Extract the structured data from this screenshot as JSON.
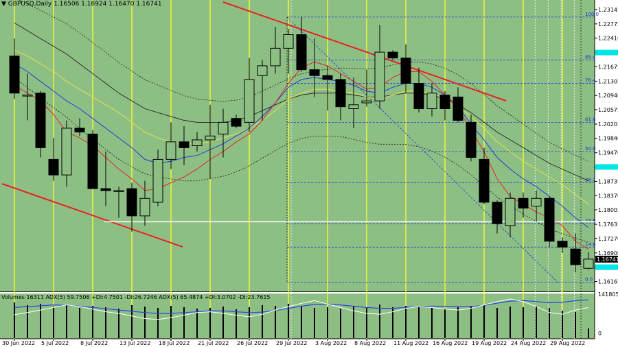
{
  "header": {
    "symbol_info": "GBPUSD,Daily  1.16506 1.16924 1.16470 1.16741"
  },
  "indicator_header": {
    "text": "Volumes 16311  ADX(5) 59.7506 +DI:4.7501 -DI:26.7246  ADX(5) 65.4874 +DI:3.0702 -DI:23.7615"
  },
  "colors": {
    "background": "#8dbf85",
    "bull_body": "#8dbf85",
    "bear_body": "#000000",
    "trendline": "#e8231f",
    "fib": "#1f3bd6",
    "ma_fast": "#e8231f",
    "ma_mid": "#1f3bd6",
    "ma_slow": "#e2e24a",
    "ma_long": "#222222",
    "vline": "#ffff2b",
    "price_tag": "#00e5e5",
    "adx_white": "#ffffff",
    "adx_blue": "#2848e0"
  },
  "chart_data": {
    "type": "candlestick",
    "symbol": "GBPUSD",
    "timeframe": "Daily",
    "price_axis": {
      "ylim": [
        1.16,
        1.233
      ],
      "ticks": [
        "1.23145",
        "1.22775",
        "1.22410",
        "1.22040",
        "1.21675",
        "1.21305",
        "1.20940",
        "1.20575",
        "1.20205",
        "1.19840",
        "1.19470",
        "1.19105",
        "1.18735",
        "1.18370",
        "1.18005",
        "1.17635",
        "1.17270",
        "1.16900",
        "1.16535",
        "1.16165"
      ],
      "current_price": "1.16741",
      "highlight_prices": [
        "1.22040",
        "1.19105",
        "1.16535"
      ]
    },
    "date_labels": [
      "30 Jun 2022",
      "5 Jul 2022",
      "8 Jul 2022",
      "13 Jul 2022",
      "18 Jul 2022",
      "21 Jul 2022",
      "26 Jul 2022",
      "29 Jul 2022",
      "3 Aug 2022",
      "8 Aug 2022",
      "11 Aug 2022",
      "16 Aug 2022",
      "19 Aug 2022",
      "24 Aug 2022",
      "29 Aug 2022"
    ],
    "candles": [
      {
        "o": 1.2195,
        "h": 1.224,
        "l": 1.2085,
        "c": 1.21
      },
      {
        "o": 1.2095,
        "h": 1.215,
        "l": 1.203,
        "c": 1.2095
      },
      {
        "o": 1.21,
        "h": 1.2105,
        "l": 1.1935,
        "c": 1.196
      },
      {
        "o": 1.193,
        "h": 1.1985,
        "l": 1.1875,
        "c": 1.189
      },
      {
        "o": 1.189,
        "h": 1.203,
        "l": 1.186,
        "c": 1.201
      },
      {
        "o": 1.201,
        "h": 1.2035,
        "l": 1.199,
        "c": 1.2
      },
      {
        "o": 1.1995,
        "h": 1.2005,
        "l": 1.186,
        "c": 1.1855
      },
      {
        "o": 1.1855,
        "h": 1.195,
        "l": 1.181,
        "c": 1.185
      },
      {
        "o": 1.185,
        "h": 1.186,
        "l": 1.178,
        "c": 1.185
      },
      {
        "o": 1.1855,
        "h": 1.187,
        "l": 1.1745,
        "c": 1.1785
      },
      {
        "o": 1.1785,
        "h": 1.1875,
        "l": 1.176,
        "c": 1.183
      },
      {
        "o": 1.182,
        "h": 1.1955,
        "l": 1.181,
        "c": 1.193
      },
      {
        "o": 1.193,
        "h": 1.2025,
        "l": 1.1905,
        "c": 1.1975
      },
      {
        "o": 1.1975,
        "h": 1.2015,
        "l": 1.1915,
        "c": 1.196
      },
      {
        "o": 1.1965,
        "h": 1.2,
        "l": 1.195,
        "c": 1.198
      },
      {
        "o": 1.198,
        "h": 1.207,
        "l": 1.188,
        "c": 1.199
      },
      {
        "o": 1.1995,
        "h": 1.206,
        "l": 1.1935,
        "c": 1.2025
      },
      {
        "o": 1.2035,
        "h": 1.2045,
        "l": 1.201,
        "c": 1.2015
      },
      {
        "o": 1.2025,
        "h": 1.219,
        "l": 1.2,
        "c": 1.2135
      },
      {
        "o": 1.2145,
        "h": 1.2185,
        "l": 1.203,
        "c": 1.217
      },
      {
        "o": 1.217,
        "h": 1.227,
        "l": 1.215,
        "c": 1.2215
      },
      {
        "o": 1.2215,
        "h": 1.2265,
        "l": 1.215,
        "c": 1.225
      },
      {
        "o": 1.225,
        "h": 1.2295,
        "l": 1.2155,
        "c": 1.216
      },
      {
        "o": 1.216,
        "h": 1.224,
        "l": 1.209,
        "c": 1.2145
      },
      {
        "o": 1.2145,
        "h": 1.217,
        "l": 1.2055,
        "c": 1.2135
      },
      {
        "o": 1.2135,
        "h": 1.215,
        "l": 1.203,
        "c": 1.2065
      },
      {
        "o": 1.206,
        "h": 1.214,
        "l": 1.201,
        "c": 1.207
      },
      {
        "o": 1.2075,
        "h": 1.216,
        "l": 1.2065,
        "c": 1.208
      },
      {
        "o": 1.208,
        "h": 1.2275,
        "l": 1.206,
        "c": 1.2205
      },
      {
        "o": 1.2205,
        "h": 1.221,
        "l": 1.2185,
        "c": 1.219
      },
      {
        "o": 1.219,
        "h": 1.2225,
        "l": 1.21,
        "c": 1.2125
      },
      {
        "o": 1.2125,
        "h": 1.2165,
        "l": 1.205,
        "c": 1.206
      },
      {
        "o": 1.206,
        "h": 1.2125,
        "l": 1.204,
        "c": 1.21
      },
      {
        "o": 1.2095,
        "h": 1.2105,
        "l": 1.203,
        "c": 1.206
      },
      {
        "o": 1.209,
        "h": 1.2115,
        "l": 1.2025,
        "c": 1.203
      },
      {
        "o": 1.2025,
        "h": 1.2045,
        "l": 1.1925,
        "c": 1.1935
      },
      {
        "o": 1.193,
        "h": 1.196,
        "l": 1.1815,
        "c": 1.182
      },
      {
        "o": 1.182,
        "h": 1.1825,
        "l": 1.174,
        "c": 1.1765
      },
      {
        "o": 1.176,
        "h": 1.1845,
        "l": 1.173,
        "c": 1.183
      },
      {
        "o": 1.183,
        "h": 1.1845,
        "l": 1.178,
        "c": 1.1805
      },
      {
        "o": 1.181,
        "h": 1.185,
        "l": 1.177,
        "c": 1.183
      },
      {
        "o": 1.183,
        "h": 1.1835,
        "l": 1.1705,
        "c": 1.172
      },
      {
        "o": 1.172,
        "h": 1.173,
        "l": 1.169,
        "c": 1.1705
      },
      {
        "o": 1.17,
        "h": 1.174,
        "l": 1.164,
        "c": 1.166
      },
      {
        "o": 1.16506,
        "h": 1.16924,
        "l": 1.1647,
        "c": 1.16741
      }
    ],
    "moving_averages": {
      "fast_red": [
        1.212,
        1.21,
        1.208,
        1.2045,
        1.2,
        1.1985,
        1.1965,
        1.1935,
        1.1905,
        1.188,
        1.185,
        1.1855,
        1.187,
        1.1885,
        1.1905,
        1.193,
        1.195,
        1.1975,
        1.1995,
        1.203,
        1.2075,
        1.2125,
        1.2165,
        1.218,
        1.217,
        1.215,
        1.213,
        1.211,
        1.2115,
        1.214,
        1.2155,
        1.2155,
        1.213,
        1.2095,
        1.206,
        1.2005,
        1.195,
        1.188,
        1.1835,
        1.1815,
        1.1795,
        1.178,
        1.176,
        1.172,
        1.17
      ],
      "mid_blue": [
        1.2175,
        1.2155,
        1.213,
        1.2105,
        1.208,
        1.206,
        1.2035,
        1.201,
        1.1985,
        1.196,
        1.193,
        1.192,
        1.1925,
        1.1935,
        1.194,
        1.1955,
        1.197,
        1.199,
        1.201,
        1.204,
        1.2075,
        1.2115,
        1.2135,
        1.214,
        1.2135,
        1.213,
        1.212,
        1.2105,
        1.21,
        1.2115,
        1.2125,
        1.2125,
        1.2115,
        1.2095,
        1.2065,
        1.202,
        1.198,
        1.1935,
        1.1905,
        1.188,
        1.186,
        1.1835,
        1.181,
        1.178,
        1.1755
      ],
      "slow_yellow": [
        1.221,
        1.2195,
        1.2175,
        1.2155,
        1.213,
        1.211,
        1.209,
        1.207,
        1.205,
        1.2025,
        1.2,
        1.1985,
        1.1975,
        1.197,
        1.197,
        1.1975,
        1.1985,
        1.1995,
        1.201,
        1.203,
        1.2055,
        1.2085,
        1.21,
        1.211,
        1.211,
        1.2105,
        1.21,
        1.209,
        1.2085,
        1.2095,
        1.2105,
        1.2105,
        1.21,
        1.2085,
        1.2065,
        1.204,
        1.201,
        1.1975,
        1.195,
        1.1925,
        1.1905,
        1.1885,
        1.1865,
        1.184,
        1.1815
      ],
      "long_black": [
        1.228,
        1.226,
        1.224,
        1.222,
        1.22,
        1.2175,
        1.215,
        1.2125,
        1.21,
        1.208,
        1.206,
        1.205,
        1.204,
        1.203,
        1.2025,
        1.2025,
        1.2025,
        1.203,
        1.204,
        1.2055,
        1.207,
        1.2085,
        1.2095,
        1.21,
        1.21,
        1.21,
        1.2095,
        1.209,
        1.209,
        1.2095,
        1.21,
        1.21,
        1.2095,
        1.2085,
        1.207,
        1.205,
        1.2025,
        1.2,
        1.198,
        1.196,
        1.194,
        1.192,
        1.1905,
        1.189,
        1.1875
      ]
    },
    "fibonacci_levels": [
      {
        "label": "100.0",
        "price": 1.2295
      },
      {
        "label": "85.4",
        "price": 1.2185
      },
      {
        "label": "76.4",
        "price": 1.2125
      },
      {
        "label": "61.8",
        "price": 1.2025
      },
      {
        "label": "50.0",
        "price": 1.195
      },
      {
        "label": "38.2",
        "price": 1.187
      },
      {
        "label": "23.6",
        "price": 1.1765
      },
      {
        "label": "14.6",
        "price": 1.1705
      },
      {
        "label": "0.0",
        "price": 1.1615
      }
    ],
    "horizontal_level": {
      "price": 1.177
    },
    "volume_axis": {
      "ticks": [
        "141805",
        "0"
      ]
    },
    "volumes": [
      52,
      48,
      50,
      46,
      49,
      44,
      47,
      45,
      43,
      48,
      46,
      44,
      47,
      45,
      43,
      44,
      46,
      42,
      45,
      48,
      47,
      50,
      46,
      44,
      45,
      43,
      46,
      44,
      49,
      45,
      47,
      46,
      44,
      43,
      45,
      47,
      48,
      44,
      46,
      45,
      47,
      44,
      40,
      38,
      14
    ],
    "adx_white": [
      0.55,
      0.6,
      0.66,
      0.72,
      0.78,
      0.74,
      0.68,
      0.62,
      0.58,
      0.52,
      0.46,
      0.44,
      0.48,
      0.54,
      0.6,
      0.62,
      0.58,
      0.54,
      0.5,
      0.56,
      0.66,
      0.74,
      0.82,
      0.88,
      0.8,
      0.72,
      0.64,
      0.58,
      0.56,
      0.62,
      0.7,
      0.74,
      0.72,
      0.68,
      0.66,
      0.7,
      0.78,
      0.86,
      0.92,
      0.86,
      0.74,
      0.6,
      0.56,
      0.66,
      0.72
    ],
    "adx_blue": [
      0.72,
      0.74,
      0.76,
      0.78,
      0.77,
      0.75,
      0.72,
      0.69,
      0.66,
      0.63,
      0.6,
      0.58,
      0.58,
      0.6,
      0.62,
      0.64,
      0.64,
      0.62,
      0.6,
      0.61,
      0.65,
      0.7,
      0.75,
      0.79,
      0.8,
      0.78,
      0.75,
      0.72,
      0.7,
      0.7,
      0.72,
      0.74,
      0.75,
      0.75,
      0.74,
      0.74,
      0.77,
      0.82,
      0.87,
      0.88,
      0.86,
      0.83,
      0.84,
      0.88,
      0.9
    ]
  }
}
